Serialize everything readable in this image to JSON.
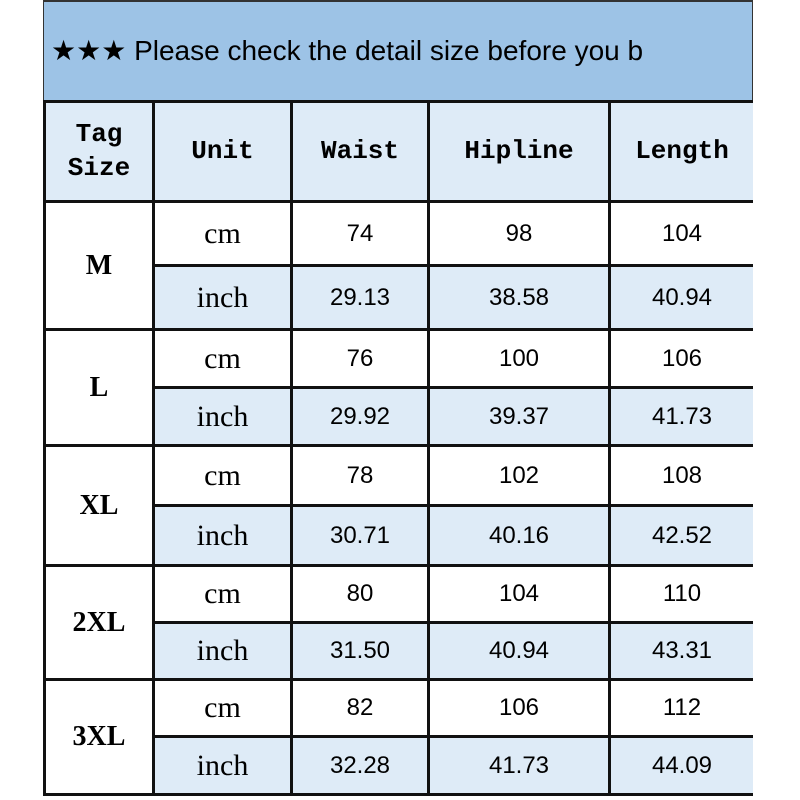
{
  "banner": "★★★ Please check the detail size before you b",
  "headers": [
    "Tag Size",
    "Unit",
    "Waist",
    "Hipline",
    "Length"
  ],
  "colors": {
    "banner": "#9dc3e6",
    "light": "#deebf7"
  },
  "rows": [
    {
      "size": "M",
      "cm": {
        "unit": "cm",
        "values": [
          "74",
          "98",
          "104"
        ]
      },
      "inch": {
        "unit": "inch",
        "values": [
          "29.13",
          "38.58",
          "40.94"
        ]
      }
    },
    {
      "size": "L",
      "cm": {
        "unit": "cm",
        "values": [
          "76",
          "100",
          "106"
        ]
      },
      "inch": {
        "unit": "inch",
        "values": [
          "29.92",
          "39.37",
          "41.73"
        ]
      }
    },
    {
      "size": "XL",
      "cm": {
        "unit": "cm",
        "values": [
          "78",
          "102",
          "108"
        ]
      },
      "inch": {
        "unit": "inch",
        "values": [
          "30.71",
          "40.16",
          "42.52"
        ]
      }
    },
    {
      "size": "2XL",
      "cm": {
        "unit": "cm",
        "values": [
          "80",
          "104",
          "110"
        ]
      },
      "inch": {
        "unit": "inch",
        "values": [
          "31.50",
          "40.94",
          "43.31"
        ]
      }
    },
    {
      "size": "3XL",
      "cm": {
        "unit": "cm",
        "values": [
          "82",
          "106",
          "112"
        ]
      },
      "inch": {
        "unit": "inch",
        "values": [
          "32.28",
          "41.73",
          "44.09"
        ]
      }
    }
  ]
}
